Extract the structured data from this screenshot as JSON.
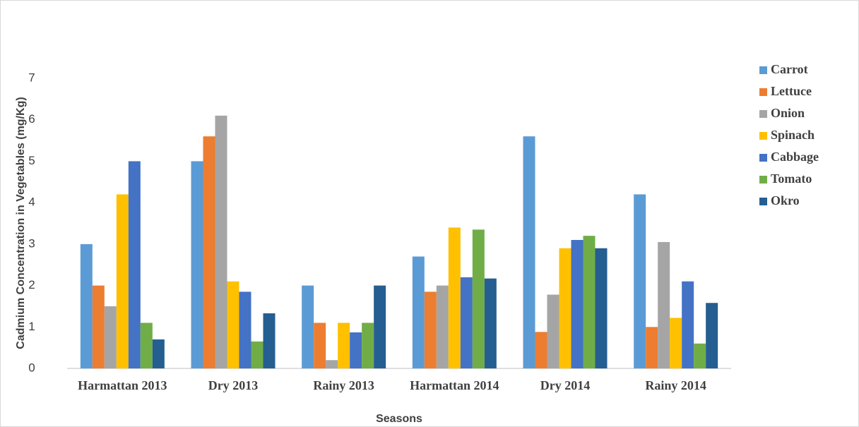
{
  "chart_data": {
    "type": "bar",
    "y_label": "Cadmium Concentration in Vegetables (mg/Kg)",
    "x_label": "Seasons",
    "categories": [
      "Harmattan 2013",
      "Dry 2013",
      "Rainy 2013",
      "Harmattan 2014",
      "Dry 2014",
      "Rainy 2014"
    ],
    "series": [
      {
        "name": "Carrot",
        "color": "#5b9bd5",
        "values": [
          3.0,
          5.0,
          2.0,
          2.7,
          5.6,
          4.2
        ]
      },
      {
        "name": "Lettuce",
        "color": "#ed7d31",
        "values": [
          2.0,
          5.6,
          1.1,
          1.85,
          0.88,
          1.0
        ]
      },
      {
        "name": "Onion",
        "color": "#a5a5a5",
        "values": [
          1.5,
          6.1,
          0.2,
          2.0,
          1.78,
          3.05
        ]
      },
      {
        "name": "Spinach",
        "color": "#ffc000",
        "values": [
          4.2,
          2.1,
          1.1,
          3.4,
          2.9,
          1.22
        ]
      },
      {
        "name": "Cabbage",
        "color": "#4472c4",
        "values": [
          5.0,
          1.85,
          0.87,
          2.2,
          3.1,
          2.1
        ]
      },
      {
        "name": "Tomato",
        "color": "#70ad47",
        "values": [
          1.1,
          0.65,
          1.1,
          3.35,
          3.2,
          0.6
        ]
      },
      {
        "name": "Okro",
        "color": "#255e91",
        "values": [
          0.7,
          1.33,
          2.0,
          2.17,
          2.9,
          1.58
        ]
      }
    ],
    "ylim": [
      0,
      7
    ],
    "yticks": [
      0,
      1,
      2,
      3,
      4,
      5,
      6,
      7
    ],
    "grid": false,
    "legend": "right"
  }
}
